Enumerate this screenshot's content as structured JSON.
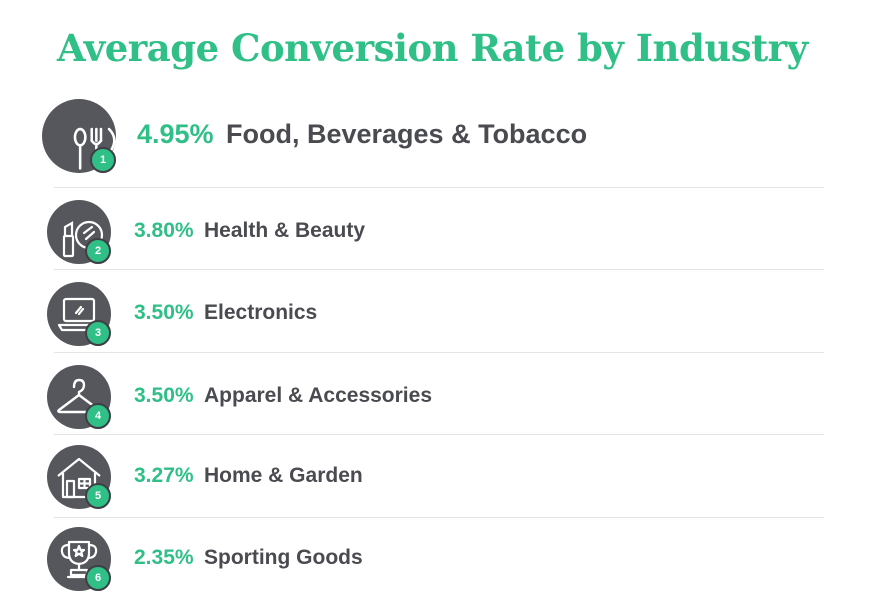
{
  "title": "Average Conversion Rate by Industry",
  "colors": {
    "accent": "#2fbf87",
    "icon_bg": "#56575c",
    "text": "#4a4b50",
    "divider": "#e4e4e4"
  },
  "chart_data": {
    "type": "table",
    "title": "Average Conversion Rate by Industry",
    "unit": "%",
    "rows": [
      {
        "rank": "1",
        "value": 4.95,
        "value_label": "4.95%",
        "category": "Food, Beverages & Tobacco",
        "icon": "utensils-icon"
      },
      {
        "rank": "2",
        "value": 3.8,
        "value_label": "3.80%",
        "category": "Health & Beauty",
        "icon": "cosmetics-icon"
      },
      {
        "rank": "3",
        "value": 3.5,
        "value_label": "3.50%",
        "category": "Electronics",
        "icon": "laptop-icon"
      },
      {
        "rank": "4",
        "value": 3.5,
        "value_label": "3.50%",
        "category": "Apparel & Accessories",
        "icon": "hanger-icon"
      },
      {
        "rank": "5",
        "value": 3.27,
        "value_label": "3.27%",
        "category": "Home & Garden",
        "icon": "house-icon"
      },
      {
        "rank": "6",
        "value": 2.35,
        "value_label": "2.35%",
        "category": "Sporting Goods",
        "icon": "trophy-icon"
      }
    ]
  }
}
